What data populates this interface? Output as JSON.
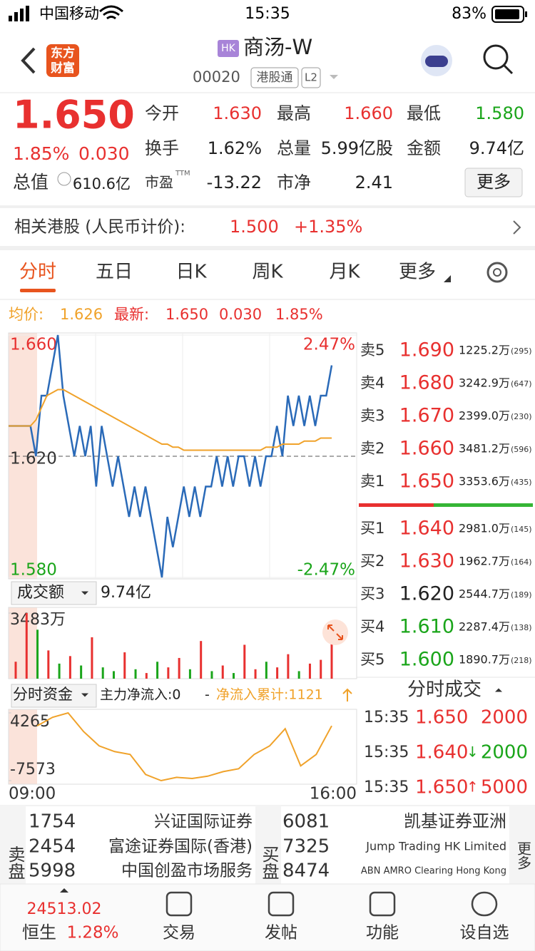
{
  "status": {
    "carrier": "中国移动",
    "time": "15:35",
    "battery": "83%"
  },
  "header": {
    "logo_top": "东方",
    "logo_bottom": "财富",
    "badge": "HK",
    "name": "商汤-W",
    "code": "00020",
    "tags": [
      "港股通",
      "L2"
    ]
  },
  "quote": {
    "price": "1.650",
    "change_pct": "1.85%",
    "change": "0.030",
    "fields": [
      {
        "label": "今开",
        "value": "1.630",
        "color": "#e8302f"
      },
      {
        "label": "最高",
        "value": "1.660",
        "color": "#e8302f"
      },
      {
        "label": "最低",
        "value": "1.580",
        "color": "#1aa51a"
      },
      {
        "label": "换手",
        "value": "1.62%"
      },
      {
        "label": "总量",
        "value": "5.99亿股"
      },
      {
        "label": "金额",
        "value": "9.74亿"
      },
      {
        "label": "市盈",
        "sup": "TTM",
        "value": "-13.22"
      },
      {
        "label": "市净",
        "value": "2.41"
      }
    ],
    "total": {
      "label": "总值",
      "value": "610.6亿"
    },
    "more": "更多"
  },
  "related": {
    "label": "相关港股 (人民币计价):",
    "price": "1.500",
    "change": "+1.35%"
  },
  "tabs": [
    "分时",
    "五日",
    "日K",
    "周K",
    "月K",
    "更多"
  ],
  "summary": {
    "avg_label": "均价:",
    "avg": "1.626",
    "last_label": "最新:",
    "last": "1.650",
    "change": "0.030",
    "change_pct": "1.85%"
  },
  "chart_data": [
    {
      "type": "line",
      "ylim": [
        1.58,
        1.66
      ],
      "yticks": [
        {
          "value": 1.58,
          "label": "1.580"
        },
        {
          "value": 1.62,
          "label": "1.620"
        },
        {
          "value": 1.66,
          "label": "1.660"
        }
      ],
      "pct_labels": [
        "2.47%",
        "-2.47%"
      ],
      "series": [
        {
          "color": "#2a6ab8",
          "values": [
            1.63,
            1.63,
            1.63,
            1.63,
            1.63,
            1.62,
            1.64,
            1.64,
            1.65,
            1.66,
            1.64,
            1.63,
            1.62,
            1.63,
            1.62,
            1.63,
            1.61,
            1.63,
            1.62,
            1.61,
            1.62,
            1.61,
            1.6,
            1.61,
            1.6,
            1.61,
            1.6,
            1.59,
            1.58,
            1.6,
            1.59,
            1.6,
            1.61,
            1.6,
            1.61,
            1.6,
            1.61,
            1.61,
            1.62,
            1.61,
            1.62,
            1.61,
            1.62,
            1.62,
            1.61,
            1.62,
            1.61,
            1.62,
            1.62,
            1.63,
            1.62,
            1.64,
            1.63,
            1.64,
            1.63,
            1.64,
            1.63,
            1.64,
            1.64,
            1.65
          ]
        },
        {
          "color": "#f0a22a",
          "values": [
            1.63,
            1.63,
            1.63,
            1.63,
            1.63,
            1.632,
            1.636,
            1.64,
            1.641,
            1.642,
            1.642,
            1.641,
            1.64,
            1.639,
            1.638,
            1.637,
            1.636,
            1.635,
            1.634,
            1.633,
            1.632,
            1.631,
            1.63,
            1.629,
            1.628,
            1.627,
            1.626,
            1.625,
            1.624,
            1.624,
            1.623,
            1.623,
            1.622,
            1.622,
            1.622,
            1.622,
            1.622,
            1.622,
            1.622,
            1.622,
            1.622,
            1.622,
            1.622,
            1.622,
            1.622,
            1.622,
            1.622,
            1.623,
            1.623,
            1.623,
            1.624,
            1.624,
            1.624,
            1.624,
            1.625,
            1.625,
            1.625,
            1.626,
            1.626,
            1.626
          ]
        }
      ]
    },
    {
      "type": "bar",
      "label": "成交额",
      "total": "9.74亿",
      "ylim": [
        0,
        3483
      ],
      "yticks": [
        {
          "value": 3483,
          "label": "3483万"
        }
      ],
      "values": [
        900,
        3483,
        2600,
        1500,
        800,
        1200,
        700,
        2200,
        600,
        400,
        1400,
        500,
        300,
        900,
        600,
        1100,
        500,
        2000,
        400,
        700,
        300,
        1800,
        500,
        900,
        600,
        1300,
        400,
        800,
        1000,
        2900
      ],
      "colors": [
        "#e8302f",
        "#e8302f",
        "#1aa51a",
        "#e8302f",
        "#1aa51a",
        "#e8302f",
        "#1aa51a",
        "#e8302f",
        "#1aa51a",
        "#1aa51a",
        "#e8302f",
        "#1aa51a",
        "#e8302f",
        "#1aa51a",
        "#e8302f",
        "#e8302f",
        "#1aa51a",
        "#e8302f",
        "#1aa51a",
        "#e8302f",
        "#1aa51a",
        "#e8302f",
        "#e8302f",
        "#1aa51a",
        "#e8302f",
        "#e8302f",
        "#1aa51a",
        "#e8302f",
        "#e8302f",
        "#e8302f"
      ]
    },
    {
      "type": "line",
      "label": "分时资金",
      "main_flow": "主力净流入:0",
      "sep": "-",
      "cum_flow": "净流入累计:1121",
      "ylim": [
        -7573,
        4265
      ],
      "yticks": [
        -7573,
        4265
      ],
      "color": "#f0a22a",
      "values": [
        2000,
        3500,
        4265,
        1000,
        -1500,
        -2500,
        -3000,
        -6500,
        -7573,
        -7000,
        -7200,
        -6800,
        -6000,
        -5500,
        -3000,
        -1500,
        1500,
        -5000,
        -3000,
        2000
      ],
      "x_labels": [
        "09:00",
        "16:00"
      ]
    }
  ],
  "order_book": {
    "asks": [
      {
        "label": "卖5",
        "price": "1.690",
        "volume": "1225.2万",
        "count": "(295)",
        "color": "#e8302f"
      },
      {
        "label": "卖4",
        "price": "1.680",
        "volume": "3242.9万",
        "count": "(647)",
        "color": "#e8302f"
      },
      {
        "label": "卖3",
        "price": "1.670",
        "volume": "2399.0万",
        "count": "(230)",
        "color": "#e8302f"
      },
      {
        "label": "卖2",
        "price": "1.660",
        "volume": "3481.2万",
        "count": "(596)",
        "color": "#e8302f"
      },
      {
        "label": "卖1",
        "price": "1.650",
        "volume": "3353.6万",
        "count": "(435)",
        "color": "#e8302f"
      }
    ],
    "bids": [
      {
        "label": "买1",
        "price": "1.640",
        "volume": "2981.0万",
        "count": "(145)",
        "color": "#e8302f"
      },
      {
        "label": "买2",
        "price": "1.630",
        "volume": "1962.7万",
        "count": "(164)",
        "color": "#e8302f"
      },
      {
        "label": "买3",
        "price": "1.620",
        "volume": "2544.7万",
        "count": "(189)",
        "color": "#222222"
      },
      {
        "label": "买4",
        "price": "1.610",
        "volume": "2287.4万",
        "count": "(138)",
        "color": "#1aa51a"
      },
      {
        "label": "买5",
        "price": "1.600",
        "volume": "1890.7万",
        "count": "(218)",
        "color": "#1aa51a"
      }
    ]
  },
  "trades": {
    "title": "分时成交",
    "rows": [
      {
        "time": "15:35",
        "price": "1.650",
        "volume": "2000",
        "price_color": "#e8302f",
        "volume_color": "#e8302f"
      },
      {
        "time": "15:35",
        "price": "1.640",
        "arrow": "↓",
        "volume": "2000",
        "price_color": "#e8302f",
        "volume_color": "#1aa51a"
      },
      {
        "time": "15:35",
        "price": "1.650",
        "arrow": "↑",
        "volume": "5000",
        "price_color": "#e8302f",
        "volume_color": "#e8302f"
      }
    ]
  },
  "brokers": {
    "sell_label": "卖盘",
    "sell": [
      {
        "id": "1754",
        "name": "兴证国际证券"
      },
      {
        "id": "2454",
        "name": "富途证券国际(香港)"
      },
      {
        "id": "5998",
        "name": "中国创盈市场服务"
      }
    ],
    "buy_label": "买盘",
    "buy": [
      {
        "id": "6081",
        "name": "凯基证券亚洲"
      },
      {
        "id": "7325",
        "name": "Jump Trading HK Limited"
      },
      {
        "id": "8474",
        "name": "ABN AMRO Clearing Hong Kong"
      }
    ],
    "more": "更多"
  },
  "nav": {
    "index_value": "24513.02",
    "index_name": "恒生",
    "index_change": "1.28%",
    "items": [
      "交易",
      "发帖",
      "功能",
      "设自选"
    ]
  }
}
